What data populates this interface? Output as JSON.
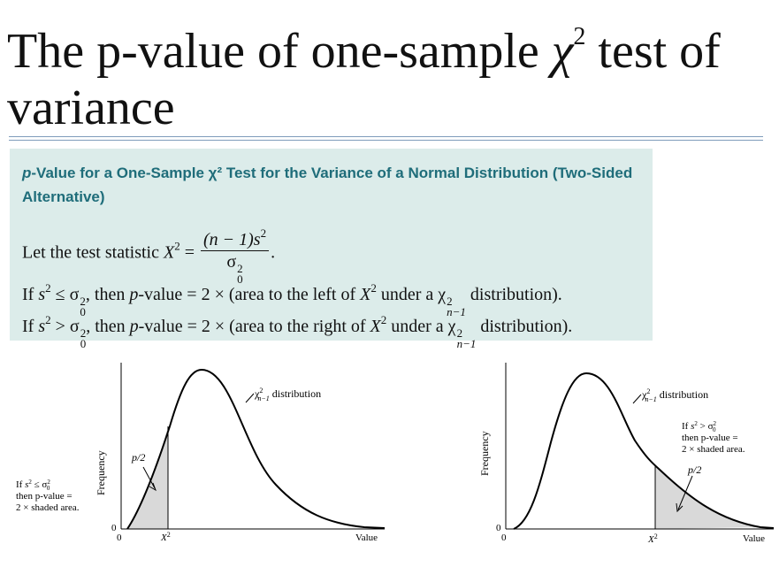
{
  "title": {
    "line1_pre": "The p-value of one-sample ",
    "chi_symbol": "χ",
    "chi_exp": "2",
    "line1_post": " test of",
    "line2": "variance"
  },
  "box": {
    "heading_italic": "p",
    "heading_rest": "-Value for a One-Sample χ² Test for the Variance of a Normal Distribution (Two-Sided Alternative)",
    "statistic": {
      "lead": "Let the test statistic ",
      "lhs": "X",
      "lhs_exp": "2",
      "equals": " = ",
      "num_a": "(n − 1)s",
      "num_exp": "2",
      "den_sigma": "σ",
      "den_exp": "2",
      "den_sub": "0",
      "end": "."
    },
    "rule_left": {
      "if": "If ",
      "s": "s",
      "s_exp": "2",
      "op": " ≤ ",
      "sigma": "σ",
      "sig_exp": "2",
      "sig_sub": "0",
      "then": ", then ",
      "p": "p",
      "pvalue": "-value = 2 × (area to the left of ",
      "X": "X",
      "X_exp": "2",
      "under": " under a ",
      "chi": "χ",
      "chi_exp": "2",
      "chi_sub": "n−1",
      "tail": " distribution)."
    },
    "rule_right": {
      "if": "If ",
      "s": "s",
      "s_exp": "2",
      "op": " > ",
      "sigma": "σ",
      "sig_exp": "2",
      "sig_sub": "0",
      "then": ", then ",
      "p": "p",
      "pvalue": "-value = 2 × (area to the right of ",
      "X": "X",
      "X_exp": "2",
      "under": " under a ",
      "chi": "χ",
      "chi_exp": "2",
      "chi_sub": "n−1",
      "tail": " distribution)."
    }
  },
  "left_figure": {
    "ylabel": "Frequency",
    "dist_chi": "χ",
    "dist_exp": "2",
    "dist_sub": "n−1",
    "dist_label": " distribution",
    "half_p": "p/2",
    "y_zero": "0",
    "x_zero": "0",
    "x_stat": "X",
    "x_stat_exp": "2",
    "x_value": "Value",
    "note_line1_if": "If ",
    "note_line1_s": "s",
    "note_line1_exp": "2",
    "note_line1_op": " ≤ σ",
    "note_line1_sig_exp": "2",
    "note_line1_sig_sub": "0",
    "note_line2": "then p-value =",
    "note_line3": "2 × shaded area.",
    "shade_color": "#d9d9d9"
  },
  "right_figure": {
    "ylabel": "Frequency",
    "dist_chi": "χ",
    "dist_exp": "2",
    "dist_sub": "n−1",
    "dist_label": " distribution",
    "half_p": "p/2",
    "y_zero": "0",
    "x_zero": "0",
    "x_stat": "X",
    "x_stat_exp": "2",
    "x_value": "Value",
    "note_line1_if": "If ",
    "note_line1_s": "s",
    "note_line1_exp": "2",
    "note_line1_op": " > σ",
    "note_line1_sig_exp": "2",
    "note_line1_sig_sub": "0",
    "note_line2": "then p-value =",
    "note_line3": "2 × shaded area.",
    "shade_color": "#d9d9d9"
  }
}
